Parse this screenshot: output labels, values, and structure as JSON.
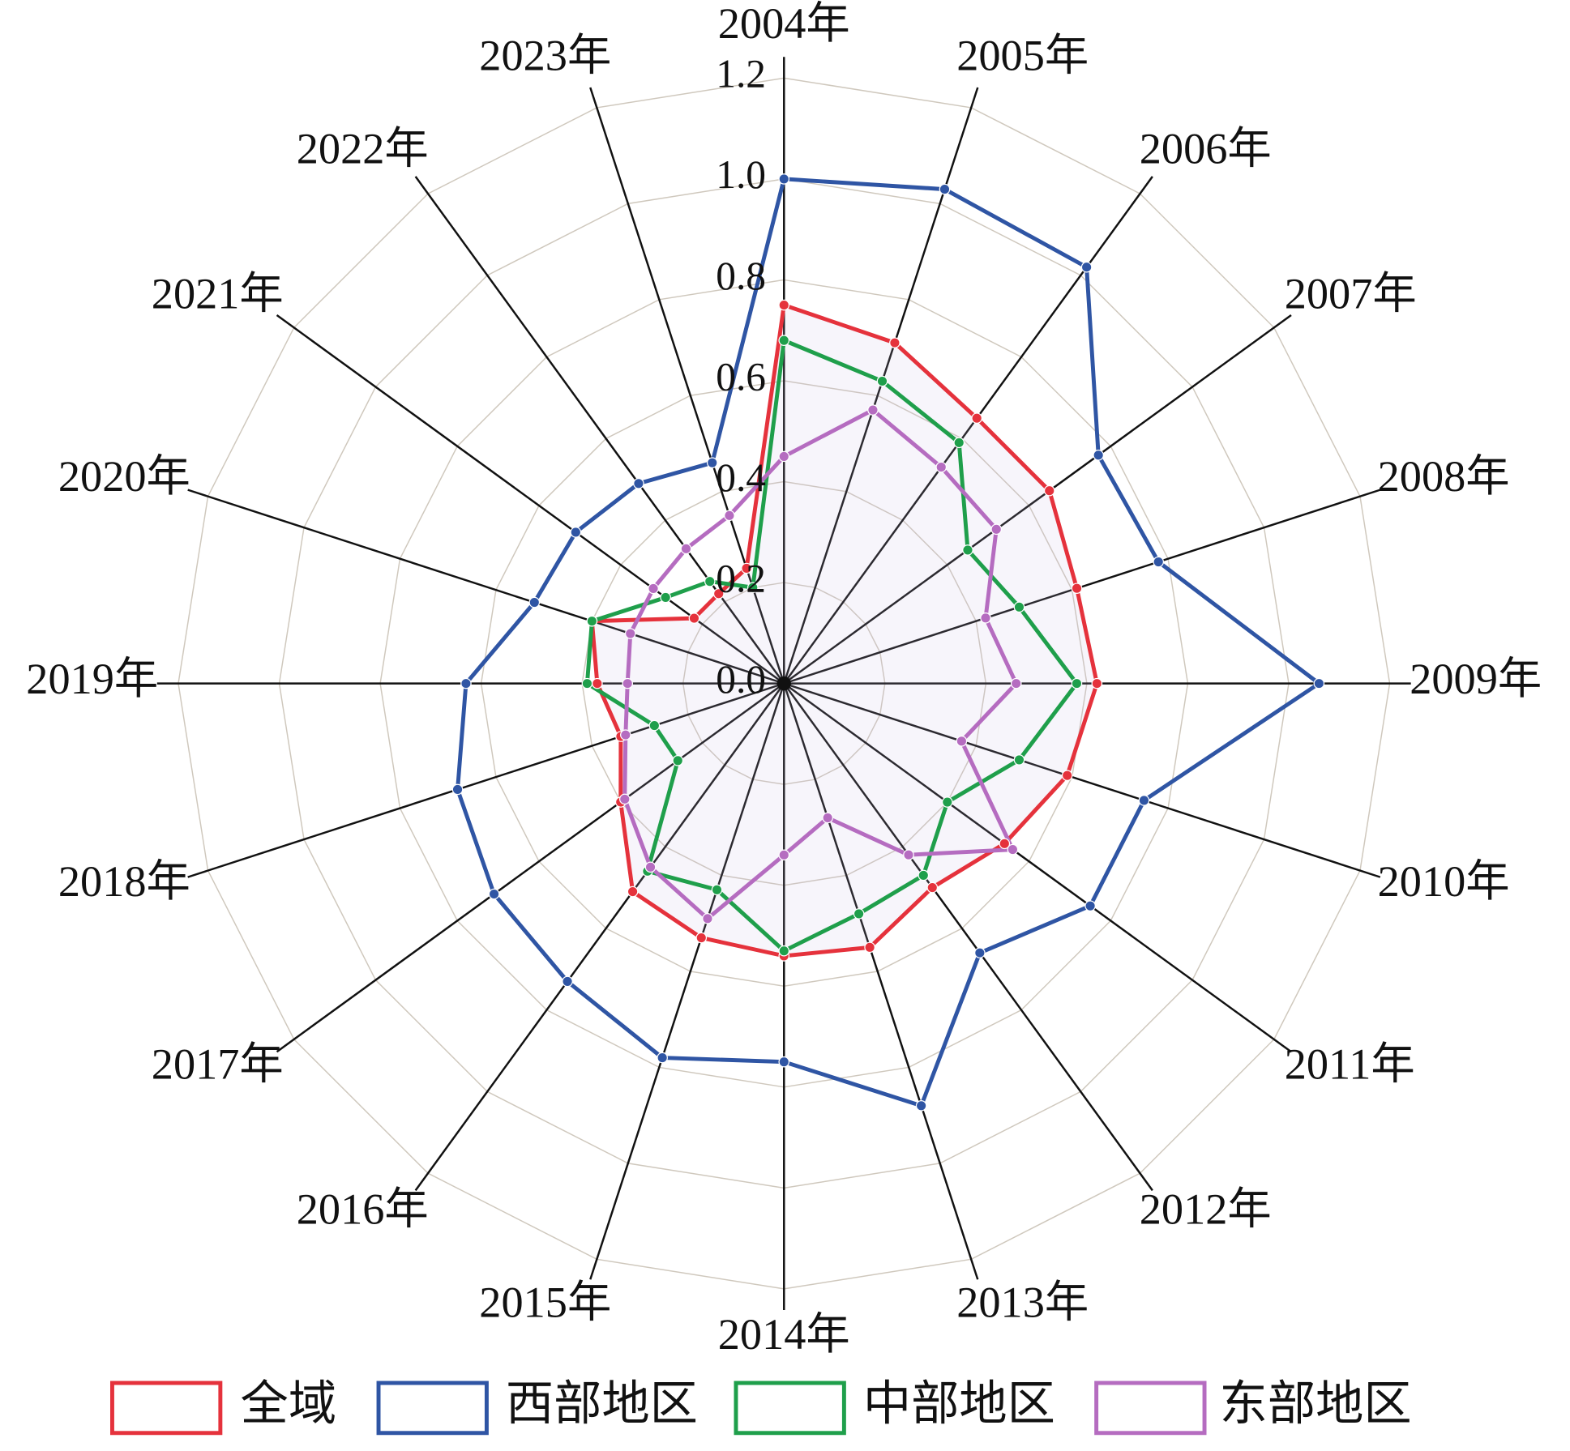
{
  "chart_data": {
    "type": "radar",
    "categories": [
      "2004年",
      "2005年",
      "2006年",
      "2007年",
      "2008年",
      "2009年",
      "2010年",
      "2011年",
      "2012年",
      "2013年",
      "2014年",
      "2015年",
      "2016年",
      "2017年",
      "2018年",
      "2019年",
      "2020年",
      "2021年",
      "2022年",
      "2023年"
    ],
    "rlim": [
      0,
      1.2
    ],
    "rticks": [
      {
        "value": 0,
        "label": "0.0"
      },
      0.2,
      0.4,
      0.6,
      0.8,
      {
        "value": 1,
        "label": "1.0"
      },
      1.2
    ],
    "series": [
      {
        "name": "全域",
        "color": "#e5323c",
        "values": [
          0.75,
          0.71,
          0.65,
          0.65,
          0.61,
          0.62,
          0.59,
          0.54,
          0.5,
          0.55,
          0.54,
          0.53,
          0.51,
          0.4,
          0.34,
          0.37,
          0.4,
          0.22,
          0.22,
          0.24
        ]
      },
      {
        "name": "西部地区",
        "color": "#2f55a4",
        "values": [
          1.0,
          1.03,
          1.02,
          0.77,
          0.78,
          1.06,
          0.75,
          0.75,
          0.66,
          0.88,
          0.75,
          0.78,
          0.73,
          0.71,
          0.68,
          0.63,
          0.52,
          0.51,
          0.49,
          0.46
        ]
      },
      {
        "name": "中部地区",
        "color": "#1f9f4b",
        "values": [
          0.68,
          0.63,
          0.59,
          0.45,
          0.49,
          0.58,
          0.49,
          0.4,
          0.47,
          0.48,
          0.53,
          0.43,
          0.46,
          0.26,
          0.27,
          0.39,
          0.4,
          0.29,
          0.25,
          0.2
        ]
      },
      {
        "name": "东部地区",
        "color": "#b56cc0",
        "values": [
          0.45,
          0.57,
          0.53,
          0.52,
          0.42,
          0.46,
          0.37,
          0.56,
          0.42,
          0.28,
          0.34,
          0.49,
          0.45,
          0.39,
          0.33,
          0.31,
          0.32,
          0.32,
          0.33,
          0.35
        ]
      }
    ]
  }
}
